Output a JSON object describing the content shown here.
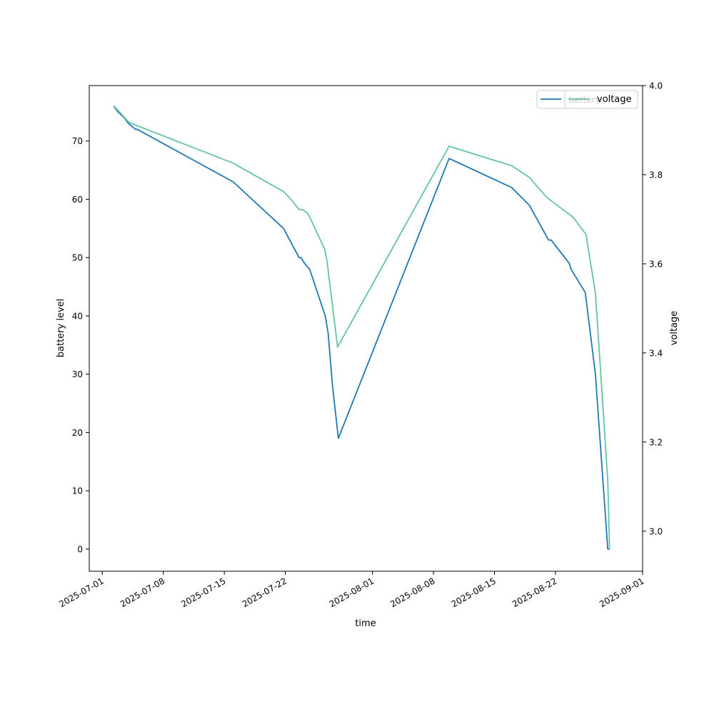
{
  "chart_data": {
    "type": "line",
    "xlabel": "time",
    "ylabel_left": "battery level",
    "ylabel_right": "voltage",
    "x_ticks": [
      "2025-07-01",
      "2025-07-08",
      "2025-07-15",
      "2025-07-22",
      "2025-08-01",
      "2025-08-08",
      "2025-08-15",
      "2025-08-22",
      "2025-09-01"
    ],
    "x_range": [
      "2025-06-29T12:00",
      "2025-09-01T00:00"
    ],
    "y_left_ticks": [
      0,
      10,
      20,
      30,
      40,
      50,
      60,
      70
    ],
    "y_left_range": [
      -3.8,
      79.5
    ],
    "y_right_ticks": [
      3.0,
      3.2,
      3.4,
      3.6,
      3.8,
      4.0
    ],
    "y_right_range": [
      2.91,
      4.0
    ],
    "legend_placement": "top-right",
    "grid": false,
    "series": [
      {
        "name": "battery",
        "axis": "left",
        "color": "#1f77b4",
        "points": [
          {
            "x": "2025-07-02T07:00",
            "y": 76
          },
          {
            "x": "2025-07-02T19:00",
            "y": 75
          },
          {
            "x": "2025-07-03T12:00",
            "y": 74
          },
          {
            "x": "2025-07-04T00:00",
            "y": 73
          },
          {
            "x": "2025-07-04T19:00",
            "y": 72
          },
          {
            "x": "2025-07-05T00:00",
            "y": 72
          },
          {
            "x": "2025-07-16T00:00",
            "y": 63
          },
          {
            "x": "2025-07-21T19:00",
            "y": 55
          },
          {
            "x": "2025-07-22T12:00",
            "y": 53
          },
          {
            "x": "2025-07-23T14:00",
            "y": 50
          },
          {
            "x": "2025-07-23T19:00",
            "y": 50
          },
          {
            "x": "2025-07-24T05:00",
            "y": 49
          },
          {
            "x": "2025-07-24T19:00",
            "y": 48
          },
          {
            "x": "2025-07-26T14:00",
            "y": 40
          },
          {
            "x": "2025-07-26T22:00",
            "y": 37
          },
          {
            "x": "2025-07-27T10:00",
            "y": 28
          },
          {
            "x": "2025-07-28T02:00",
            "y": 19
          },
          {
            "x": "2025-08-09T19:00",
            "y": 67
          },
          {
            "x": "2025-08-17T00:00",
            "y": 62
          },
          {
            "x": "2025-08-19T00:00",
            "y": 59
          },
          {
            "x": "2025-08-21T05:00",
            "y": 53
          },
          {
            "x": "2025-08-21T12:00",
            "y": 53
          },
          {
            "x": "2025-08-23T14:00",
            "y": 49
          },
          {
            "x": "2025-08-23T19:00",
            "y": 48
          },
          {
            "x": "2025-08-25T10:00",
            "y": 44
          },
          {
            "x": "2025-08-26T14:00",
            "y": 30
          },
          {
            "x": "2025-08-28T00:00",
            "y": 0
          },
          {
            "x": "2025-08-28T05:00",
            "y": 0
          }
        ]
      },
      {
        "name": "voltage",
        "axis": "right",
        "color": "#66c2a5",
        "points": [
          {
            "x": "2025-07-02T07:00",
            "y": 3.955
          },
          {
            "x": "2025-07-04T02:00",
            "y": 3.917
          },
          {
            "x": "2025-07-16T00:00",
            "y": 3.826
          },
          {
            "x": "2025-07-21T19:00",
            "y": 3.762
          },
          {
            "x": "2025-07-22T12:00",
            "y": 3.748
          },
          {
            "x": "2025-07-23T14:00",
            "y": 3.722
          },
          {
            "x": "2025-07-24T00:00",
            "y": 3.721
          },
          {
            "x": "2025-07-24T12:00",
            "y": 3.715
          },
          {
            "x": "2025-07-24T19:00",
            "y": 3.705
          },
          {
            "x": "2025-07-26T12:00",
            "y": 3.634
          },
          {
            "x": "2025-07-26T19:00",
            "y": 3.605
          },
          {
            "x": "2025-07-28T00:00",
            "y": 3.413
          },
          {
            "x": "2025-08-09T19:00",
            "y": 3.864
          },
          {
            "x": "2025-08-17T00:00",
            "y": 3.82
          },
          {
            "x": "2025-08-19T00:00",
            "y": 3.794
          },
          {
            "x": "2025-08-21T00:00",
            "y": 3.749
          },
          {
            "x": "2025-08-24T00:00",
            "y": 3.705
          },
          {
            "x": "2025-08-25T12:00",
            "y": 3.666
          },
          {
            "x": "2025-08-26T14:00",
            "y": 3.535
          },
          {
            "x": "2025-08-28T00:00",
            "y": 3.115
          },
          {
            "x": "2025-08-28T05:00",
            "y": 2.96
          }
        ]
      }
    ],
    "legend_boxes": [
      {
        "label": "battery",
        "color": "#1f77b4",
        "visible_label": false
      },
      {
        "label": "voltage",
        "color": "#66c2a5",
        "visible_label": true
      }
    ]
  }
}
